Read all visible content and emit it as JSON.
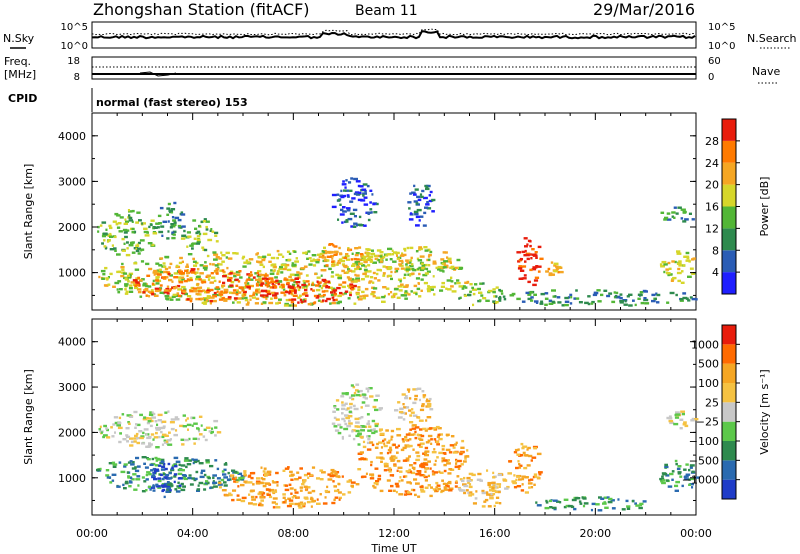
{
  "header": {
    "title": "Zhongshan Station (fitACF)",
    "beam": "Beam 11",
    "date": "29/Mar/2016"
  },
  "top_panels": {
    "nsky_label": "N.Sky",
    "nsky_ticks": [
      "10^5",
      "10^0"
    ],
    "nsearch_label": "N.Search",
    "nsearch_ticks": [
      "10^5",
      "10^0"
    ],
    "freq_label_1": "Freq.",
    "freq_label_2": "[MHz]",
    "freq_ticks": [
      "18",
      "8"
    ],
    "nave_label": "Nave",
    "nave_ticks": [
      "60",
      "0"
    ],
    "cpid_label": "CPID",
    "cpid_text": "normal (fast stereo) 153"
  },
  "chart_data": [
    {
      "type": "heatmap",
      "name": "power",
      "ylabel": "Slant Range [km]",
      "xlabel": "Time UT",
      "xlim_hours": [
        0,
        24
      ],
      "ylim": [
        180,
        4500
      ],
      "yticks": [
        "1000",
        "2000",
        "3000",
        "4000"
      ],
      "xticks": [
        "00:00",
        "04:00",
        "08:00",
        "12:00",
        "16:00",
        "20:00",
        "00:00"
      ],
      "colorbar": {
        "label": "Power [dB]",
        "ticks": [
          "4",
          "8",
          "12",
          "16",
          "20",
          "24",
          "28"
        ],
        "colors": [
          "#1f1fff",
          "#2a5cb5",
          "#2e8a4e",
          "#52b636",
          "#d6d62a",
          "#f5a623",
          "#ff7a00",
          "#e81c0c"
        ]
      },
      "regions": [
        {
          "t": [
            0.2,
            2.5
          ],
          "r": [
            1400,
            2400
          ],
          "level": 3
        },
        {
          "t": [
            2.5,
            3.6
          ],
          "r": [
            1700,
            2600
          ],
          "level": 2
        },
        {
          "t": [
            3.5,
            5.0
          ],
          "r": [
            1500,
            2200
          ],
          "level": 3
        },
        {
          "t": [
            0.1,
            15.0
          ],
          "r": [
            300,
            1500
          ],
          "level": 4
        },
        {
          "t": [
            1.5,
            7.5
          ],
          "r": [
            400,
            1100
          ],
          "level": 6
        },
        {
          "t": [
            6.5,
            10.5
          ],
          "r": [
            350,
            900
          ],
          "level": 7
        },
        {
          "t": [
            9.0,
            11.0
          ],
          "r": [
            1100,
            1700
          ],
          "level": 5
        },
        {
          "t": [
            9.5,
            11.3
          ],
          "r": [
            2000,
            3100
          ],
          "level": 1
        },
        {
          "t": [
            12.5,
            13.5
          ],
          "r": [
            2000,
            3000
          ],
          "level": 1
        },
        {
          "t": [
            10.5,
            14.5
          ],
          "r": [
            1000,
            1600
          ],
          "level": 4
        },
        {
          "t": [
            14.5,
            16.3
          ],
          "r": [
            300,
            800
          ],
          "level": 3
        },
        {
          "t": [
            16.8,
            17.8
          ],
          "r": [
            700,
            1800
          ],
          "level": 7
        },
        {
          "t": [
            18.0,
            18.6
          ],
          "r": [
            900,
            1300
          ],
          "level": 5
        },
        {
          "t": [
            16.0,
            24.0
          ],
          "r": [
            300,
            650
          ],
          "level": 2
        },
        {
          "t": [
            22.5,
            24.0
          ],
          "r": [
            800,
            1500
          ],
          "level": 4
        },
        {
          "t": [
            22.5,
            24.0
          ],
          "r": [
            2100,
            2500
          ],
          "level": 2
        }
      ]
    },
    {
      "type": "heatmap",
      "name": "velocity",
      "ylabel": "Slant Range [km]",
      "xlabel": "Time UT",
      "xlim_hours": [
        0,
        24
      ],
      "ylim": [
        180,
        4500
      ],
      "yticks": [
        "1000",
        "2000",
        "3000",
        "4000"
      ],
      "xticks": [
        "00:00",
        "04:00",
        "08:00",
        "12:00",
        "16:00",
        "20:00",
        "00:00"
      ],
      "colorbar": {
        "label": "Velocity [m s⁻¹]",
        "ticks": [
          "1000",
          "500",
          "100",
          "25",
          "−25",
          "−100",
          "−500",
          "−1000"
        ],
        "colors": [
          "#1f3cc8",
          "#2a6ab0",
          "#2e8a4e",
          "#5cc84a",
          "#c8c8c8",
          "#f5c242",
          "#f5a623",
          "#ff6a00",
          "#e81c0c"
        ]
      },
      "regions": [
        {
          "t": [
            0.2,
            5.0
          ],
          "r": [
            1700,
            2500
          ],
          "level": 4
        },
        {
          "t": [
            0.1,
            6.0
          ],
          "r": [
            700,
            1500
          ],
          "level": 2
        },
        {
          "t": [
            2.2,
            3.6
          ],
          "r": [
            600,
            1400
          ],
          "level": 0
        },
        {
          "t": [
            5.0,
            10.5
          ],
          "r": [
            350,
            1300
          ],
          "level": 6
        },
        {
          "t": [
            9.5,
            11.5
          ],
          "r": [
            1700,
            3100
          ],
          "level": 4
        },
        {
          "t": [
            10.5,
            15.0
          ],
          "r": [
            600,
            2200
          ],
          "level": 6
        },
        {
          "t": [
            12.0,
            13.5
          ],
          "r": [
            2200,
            3000
          ],
          "level": 5
        },
        {
          "t": [
            14.5,
            16.5
          ],
          "r": [
            350,
            1200
          ],
          "level": 5
        },
        {
          "t": [
            16.5,
            17.8
          ],
          "r": [
            700,
            1800
          ],
          "level": 6
        },
        {
          "t": [
            17.5,
            22.5
          ],
          "r": [
            300,
            600
          ],
          "level": 2
        },
        {
          "t": [
            22.5,
            24.0
          ],
          "r": [
            700,
            1400
          ],
          "level": 2
        },
        {
          "t": [
            22.8,
            24.0
          ],
          "r": [
            2100,
            2500
          ],
          "level": 4
        }
      ]
    }
  ]
}
